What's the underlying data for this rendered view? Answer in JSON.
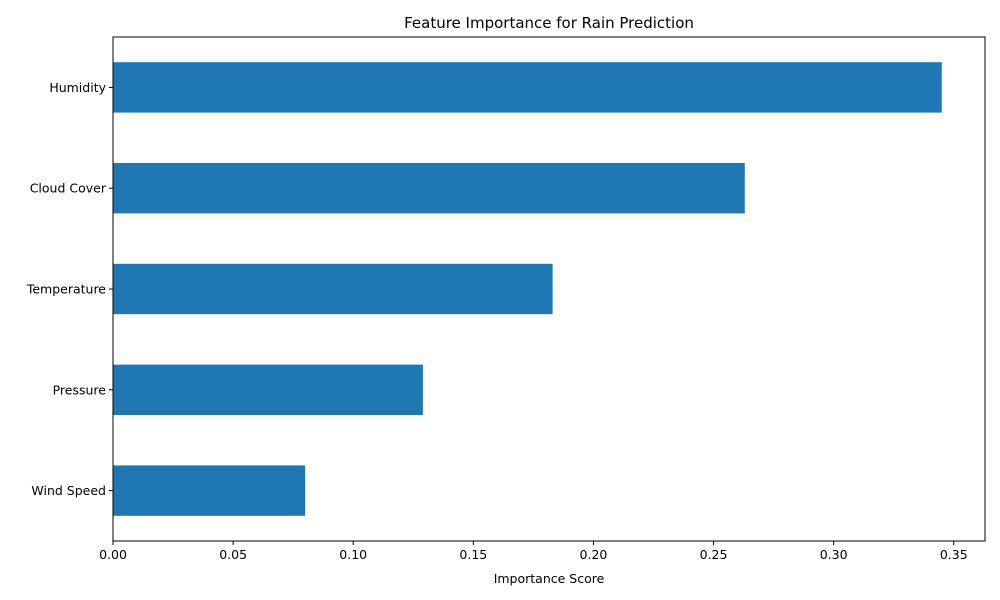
{
  "chart_data": {
    "type": "bar",
    "orientation": "horizontal",
    "title": "Feature Importance for Rain Prediction",
    "xlabel": "Importance Score",
    "ylabel": "",
    "categories": [
      "Wind Speed",
      "Pressure",
      "Temperature",
      "Cloud Cover",
      "Humidity"
    ],
    "values": [
      0.08,
      0.129,
      0.183,
      0.263,
      0.345
    ],
    "xlim": [
      0.0,
      0.363
    ],
    "xticks": [
      "0.00",
      "0.05",
      "0.10",
      "0.15",
      "0.20",
      "0.25",
      "0.30",
      "0.35"
    ],
    "grid": false,
    "legend": "none",
    "bar_color": "#1f77b4"
  }
}
